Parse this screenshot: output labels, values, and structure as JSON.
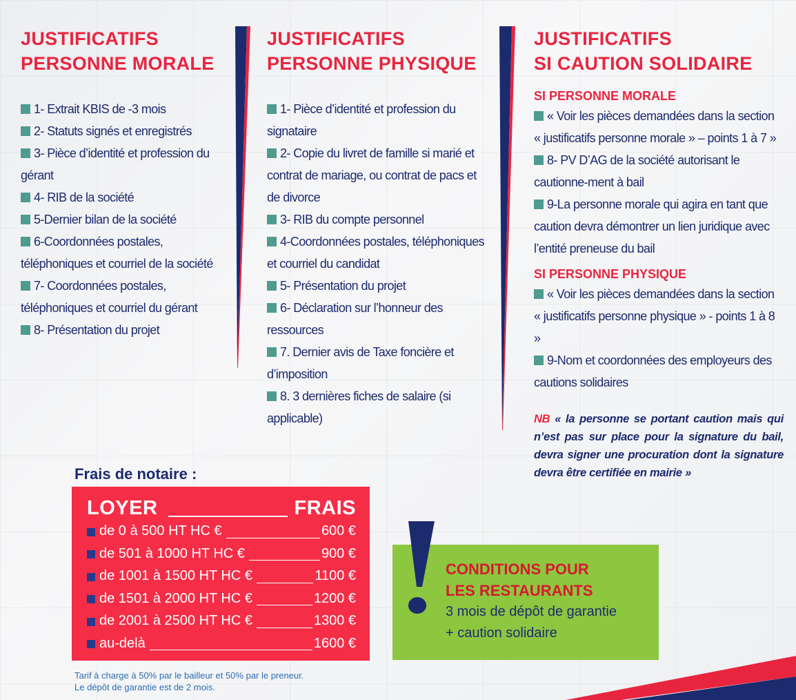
{
  "colors": {
    "accent_red": "#e8253f",
    "navy": "#1c2a6e",
    "bullet_teal": "#4f9b8f",
    "fees_box": "#f52d47",
    "conditions_box": "#8dc63f"
  },
  "morale": {
    "title_1": "JUSTIFICATIFS",
    "title_2": "PERSONNE MORALE",
    "items": [
      "1- Extrait KBIS de -3 mois",
      "2- Statuts signés et enregistrés",
      "3- Pièce d’identité et profession du gérant",
      "4- RIB de la société",
      "5-Dernier bilan de la société",
      "6-Coordonnées postales, téléphoniques et courriel de la société",
      "7- Coordonnées postales, téléphoniques et courriel du gérant",
      "8- Présentation du projet"
    ]
  },
  "physique": {
    "title_1": "JUSTIFICATIFS",
    "title_2": "PERSONNE PHYSIQUE",
    "items": [
      "1- Pièce d’identité et profession du signataire",
      "2- Copie du livret de famille si marié et contrat de mariage, ou contrat de pacs et de divorce",
      "3- RIB du compte personnel",
      "4-Coordonnées postales, téléphoniques et courriel du candidat",
      "5- Présentation du projet",
      "6- Déclaration sur l’honneur des ressources",
      "7. Dernier avis de Taxe foncière et d’imposition",
      "8. 3 dernières fiches de salaire (si applicable)"
    ]
  },
  "caution": {
    "title_1": "JUSTIFICATIFS",
    "title_2": "SI CAUTION SOLIDAIRE",
    "morale_heading": "SI PERSONNE MORALE",
    "morale_items": [
      "« Voir les pièces demandées dans la section « justificatifs personne morale » – points 1 à 7 »",
      "8- PV D’AG de la société autorisant le cautionne-ment à bail",
      "9-La personne morale qui agira en tant que caution devra démontrer un lien juridique avec l’entité preneuse du bail"
    ],
    "physique_heading": "SI PERSONNE PHYSIQUE",
    "physique_items": [
      "« Voir les pièces demandées dans la section « justificatifs personne physique » - points 1 à 8 »",
      "9-Nom et coordonnées des employeurs des cautions solidaires"
    ],
    "nb_tag": "NB",
    "nb_text": "« la personne se portant caution mais qui n’est pas sur place pour la signature du bail, devra signer une procuration dont la signature devra être certifiée en mairie »"
  },
  "fees": {
    "title": "Frais de notaire :",
    "col_left": "LOYER",
    "col_right": "FRAIS",
    "rows": [
      {
        "range": "de 0 à 500 HT HC €",
        "fee": "600 €"
      },
      {
        "range": "de 501 à 1000 HT HC €",
        "fee": "900 €"
      },
      {
        "range": "de 1001 à 1500 HT HC €",
        "fee": "1100 €"
      },
      {
        "range": "de 1501 à 2000 HT HC €",
        "fee": "1200 €"
      },
      {
        "range": "de 2001 à 2500 HT HC €",
        "fee": "1300 €"
      },
      {
        "range": "au-delà",
        "fee": "1600 €"
      }
    ],
    "note_1": "Tarif à charge à 50% par le bailleur et 50% par le preneur.",
    "note_2": "Le dépôt de garantie est de 2 mois."
  },
  "restaurants": {
    "title_1": "CONDITIONS POUR",
    "title_2": "LES RESTAURANTS",
    "line_1": "3 mois de dépôt de garantie",
    "line_2": "+ caution solidaire",
    "icon": "exclamation-icon"
  }
}
